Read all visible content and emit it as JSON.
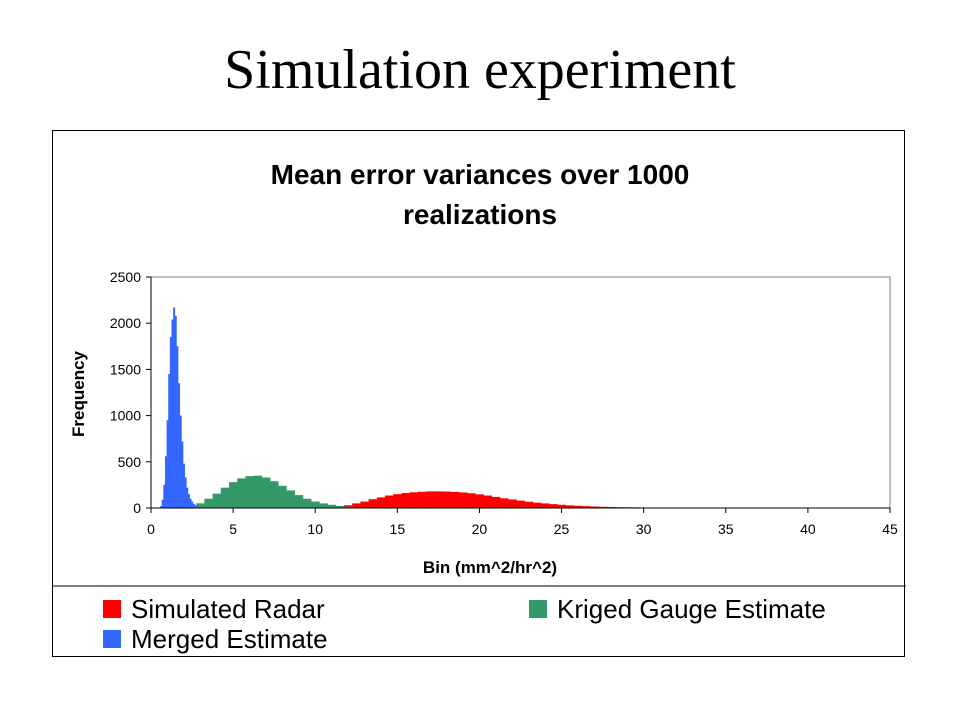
{
  "slide": {
    "title": "Simulation experiment"
  },
  "chart_data": {
    "type": "bar",
    "title_lines": [
      "Mean error variances over 1000",
      "realizations"
    ],
    "xlabel": "Bin (mm^2/hr^2)",
    "ylabel": "Frequency",
    "xlim": [
      0,
      45
    ],
    "ylim": [
      0,
      2500
    ],
    "xticks": [
      0,
      5,
      10,
      15,
      20,
      25,
      30,
      35,
      40,
      45
    ],
    "yticks": [
      0,
      500,
      1000,
      1500,
      2000,
      2500
    ],
    "grid": false,
    "legend_position": "bottom",
    "series": [
      {
        "name": "Simulated Radar",
        "color": "#ff0000",
        "x": [
          11,
          11.5,
          12,
          12.5,
          13,
          13.5,
          14,
          14.5,
          15,
          15.5,
          16,
          16.5,
          17,
          17.5,
          18,
          18.5,
          19,
          19.5,
          20,
          20.5,
          21,
          21.5,
          22,
          22.5,
          23,
          23.5,
          24,
          24.5,
          25,
          25.5,
          26,
          26.5,
          27,
          27.5,
          28,
          28.5,
          29,
          29.5,
          30,
          30.5,
          31,
          31.5,
          32,
          32.5,
          33,
          33.5,
          34,
          34.5,
          35
        ],
        "values": [
          5,
          15,
          30,
          50,
          70,
          95,
          115,
          135,
          150,
          162,
          170,
          176,
          180,
          180,
          178,
          174,
          168,
          160,
          148,
          135,
          120,
          105,
          92,
          80,
          68,
          58,
          50,
          42,
          35,
          29,
          24,
          20,
          16,
          13,
          11,
          9,
          8,
          7,
          6,
          5,
          4,
          3,
          3,
          2,
          2,
          2,
          1,
          1,
          1
        ]
      },
      {
        "name": "Kriged Gauge Estimate",
        "color": "#339966",
        "x": [
          2.5,
          3,
          3.5,
          4,
          4.5,
          5,
          5.5,
          6,
          6.5,
          7,
          7.5,
          8,
          8.5,
          9,
          9.5,
          10,
          10.5,
          11,
          11.5,
          12,
          12.5,
          13,
          13.5,
          14,
          14.5,
          15
        ],
        "values": [
          15,
          50,
          100,
          155,
          220,
          280,
          320,
          345,
          350,
          330,
          290,
          240,
          190,
          140,
          100,
          70,
          50,
          35,
          22,
          14,
          8,
          5,
          3,
          2,
          1,
          1
        ]
      },
      {
        "name": "Merged Estimate",
        "color": "#3366ff",
        "x": [
          0.6,
          0.7,
          0.8,
          0.9,
          1.0,
          1.1,
          1.2,
          1.3,
          1.4,
          1.5,
          1.6,
          1.7,
          1.8,
          1.9,
          2.0,
          2.1,
          2.2,
          2.3,
          2.4,
          2.5,
          2.6,
          2.7,
          2.8
        ],
        "values": [
          20,
          90,
          250,
          560,
          950,
          1450,
          1850,
          2040,
          2170,
          2080,
          1750,
          1350,
          1000,
          720,
          480,
          330,
          220,
          150,
          100,
          70,
          45,
          30,
          20
        ]
      }
    ]
  },
  "legend": [
    {
      "label": "Simulated Radar",
      "color": "#ff0000"
    },
    {
      "label": "Kriged Gauge Estimate",
      "color": "#339966"
    },
    {
      "label": "Merged Estimate",
      "color": "#3366ff"
    }
  ]
}
